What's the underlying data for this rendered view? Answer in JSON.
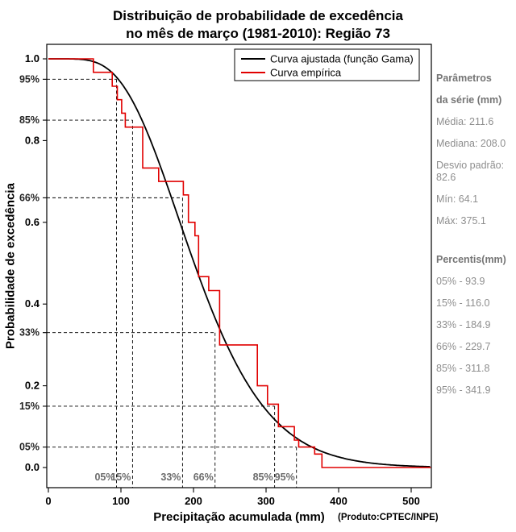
{
  "title": {
    "line1": "Distribuição de probabilidade de excedência",
    "line2": "no mês de março (1981-2010): Região 73"
  },
  "axes": {
    "xlabel": "Precipitação acumulada (mm)",
    "ylabel": "Probabilidade de excedência",
    "source_note": "(Produto:CPTEC/INPE)"
  },
  "side_panel": {
    "params_header_line1": "Parâmetros",
    "params_header_line2": "da série (mm)",
    "params": [
      "Média: 211.6",
      "Mediana: 208.0",
      "Desvio padrão: 82.6",
      "Mín: 64.1",
      "Máx: 375.1"
    ],
    "percentis_header": "Percentis(mm)",
    "percentis": [
      "05% - 93.9",
      "15% - 116.0",
      "33% - 184.9",
      "66% - 229.7",
      "85% - 311.8",
      "95% - 341.9"
    ]
  },
  "chart_data": {
    "type": "line",
    "title": "Distribuição de probabilidade de excedência no mês de março (1981-2010): Região 73",
    "xlabel": "Precipitação acumulada (mm)",
    "ylabel": "Probabilidade de excedência",
    "xlim": [
      0,
      527
    ],
    "ylim": [
      0,
      1
    ],
    "xticks": [
      0,
      100,
      200,
      300,
      400,
      500
    ],
    "yticks": [
      0,
      0.2,
      0.4,
      0.6,
      0.8,
      1
    ],
    "grid": false,
    "legend_position": "top-center-inside",
    "percentile_guides": [
      {
        "percent_label": "05%",
        "precip_mm": 93.9,
        "exceedance": 0.95,
        "exceedance_label": "95%"
      },
      {
        "percent_label": "15%",
        "precip_mm": 116.0,
        "exceedance": 0.85,
        "exceedance_label": "85%"
      },
      {
        "percent_label": "33%",
        "precip_mm": 184.9,
        "exceedance": 0.66,
        "exceedance_label": "66%"
      },
      {
        "percent_label": "66%",
        "precip_mm": 229.7,
        "exceedance": 0.33,
        "exceedance_label": "33%"
      },
      {
        "percent_label": "85%",
        "precip_mm": 311.8,
        "exceedance": 0.15,
        "exceedance_label": "15%"
      },
      {
        "percent_label": "95%",
        "precip_mm": 341.9,
        "exceedance": 0.05,
        "exceedance_label": "05%"
      }
    ],
    "series": [
      {
        "name": "Curva ajustada (função Gama)",
        "color": "#000000",
        "curve": "gamma_survival",
        "mean": 211.6,
        "sd": 82.6
      },
      {
        "name": "Curva empírica",
        "color": "#e10000",
        "curve": "step",
        "start": [
          0,
          1.0
        ],
        "steps": [
          [
            62,
            0.967
          ],
          [
            88,
            0.933
          ],
          [
            95,
            0.9
          ],
          [
            101,
            0.867
          ],
          [
            106,
            0.833
          ],
          [
            130,
            0.733
          ],
          [
            152,
            0.7
          ],
          [
            186,
            0.667
          ],
          [
            193,
            0.6
          ],
          [
            202,
            0.567
          ],
          [
            207,
            0.467
          ],
          [
            221,
            0.433
          ],
          [
            236,
            0.3
          ],
          [
            288,
            0.2
          ],
          [
            302,
            0.155
          ],
          [
            317,
            0.1
          ],
          [
            339,
            0.067
          ],
          [
            345,
            0.05
          ],
          [
            367,
            0.033
          ],
          [
            377,
            0
          ]
        ],
        "end_x": 527
      }
    ],
    "stats": {
      "media": 211.6,
      "mediana": 208.0,
      "desvio_padrao": 82.6,
      "min": 64.1,
      "max": 375.1
    }
  }
}
